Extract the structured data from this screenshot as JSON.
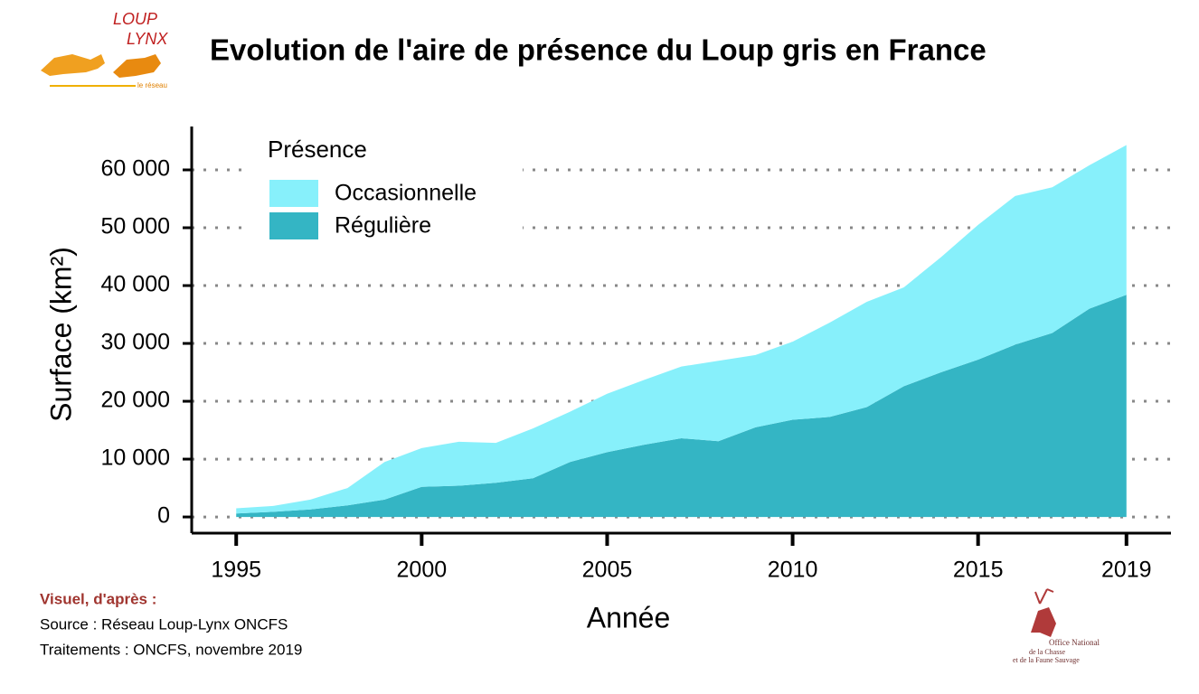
{
  "chart_data": {
    "type": "stacked_area",
    "title": "Evolution de l'aire de présence du Loup gris en France",
    "xlabel": "Année",
    "ylabel": "Surface (km²)",
    "legend_title": "Présence",
    "legend": "top-left",
    "x": [
      1995,
      1996,
      1997,
      1998,
      1999,
      2000,
      2001,
      2002,
      2003,
      2004,
      2005,
      2006,
      2007,
      2008,
      2009,
      2010,
      2011,
      2012,
      2013,
      2014,
      2015,
      2016,
      2017,
      2018,
      2019
    ],
    "series": [
      {
        "name": "Régulière",
        "color": "#34b5c4",
        "values": [
          600,
          900,
          1300,
          2000,
          3000,
          5200,
          5400,
          5900,
          6700,
          9500,
          11200,
          12500,
          13600,
          13100,
          15500,
          16800,
          17300,
          19000,
          22600,
          25000,
          27200,
          29800,
          31800,
          36000,
          38400
        ]
      },
      {
        "name": "Occasionnelle",
        "color": "#87f0fb",
        "values": [
          900,
          1000,
          1700,
          3000,
          6500,
          6700,
          7600,
          6900,
          8600,
          8700,
          10100,
          11200,
          12400,
          13900,
          12500,
          13500,
          16300,
          18200,
          17100,
          19900,
          23300,
          25700,
          25200,
          24800,
          25900
        ]
      }
    ],
    "xlim": [
      1993.8,
      2020.2
    ],
    "xticks": [
      1995,
      2000,
      2005,
      2010,
      2015,
      2019
    ],
    "ylim": [
      -2800,
      67500
    ],
    "yticks": [
      0,
      {
        "value": 10000,
        "label": "10 000"
      },
      {
        "value": 20000,
        "label": "20 000"
      },
      {
        "value": 30000,
        "label": "30 000"
      },
      {
        "value": 40000,
        "label": "40 000"
      },
      {
        "value": 50000,
        "label": "50 000"
      },
      {
        "value": 60000,
        "label": "60 000"
      }
    ],
    "grid": true,
    "credits": [
      "Visuel, d'après :",
      "Source : Réseau Loup-Lynx ONCFS",
      "Traitements : ONCFS, novembre 2019"
    ],
    "logo_left": [
      "LOUP",
      "LYNX",
      "le réseau"
    ],
    "logo_right": [
      "Office National",
      "de la Chasse",
      "et de la Faune Sauvage"
    ]
  }
}
